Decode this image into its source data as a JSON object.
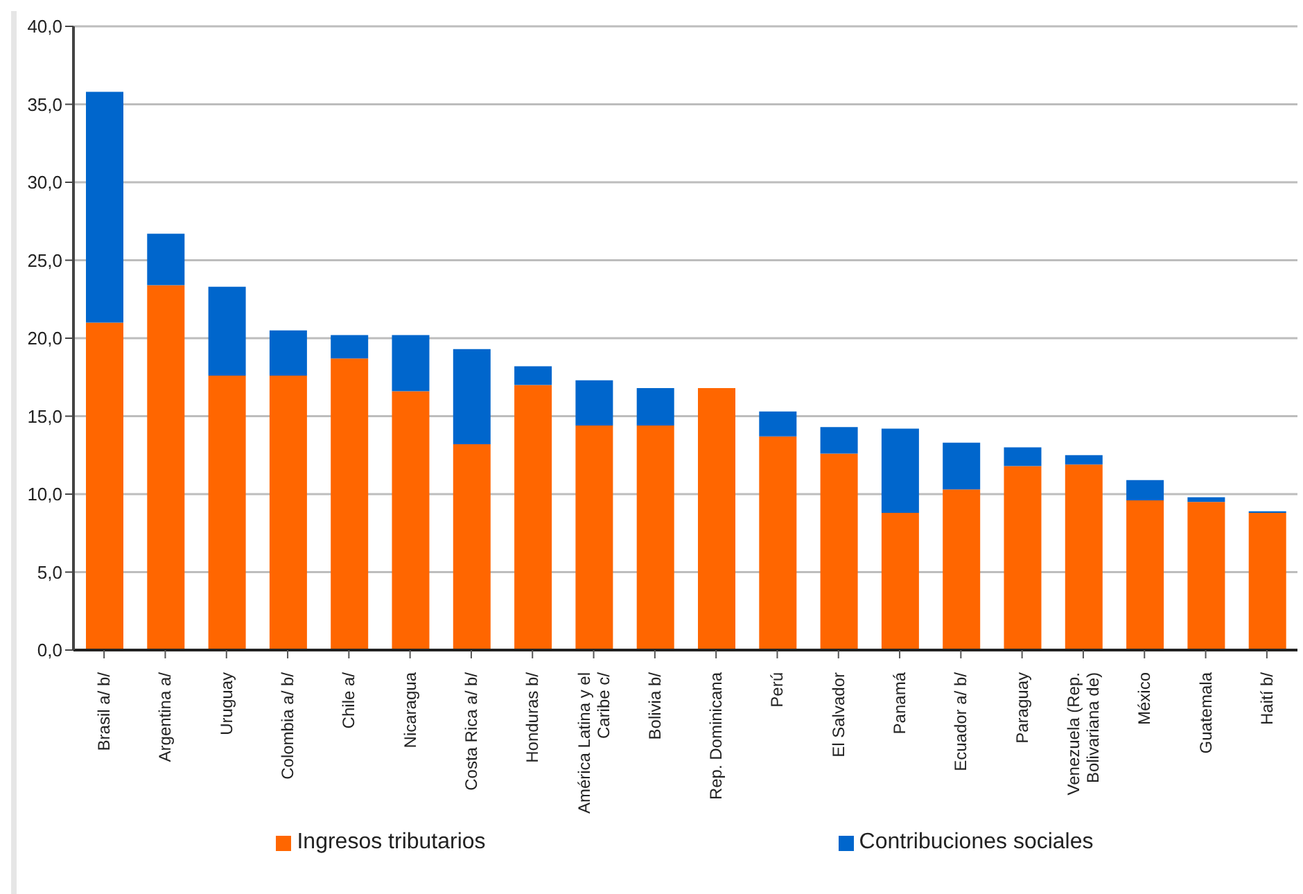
{
  "chart_data": {
    "type": "bar",
    "stacked": true,
    "categories": [
      "Brasil a/ b/",
      "Argentina a/",
      "Uruguay",
      "Colombia a/ b/",
      "Chile a/",
      "Nicaragua",
      "Costa Rica a/ b/",
      "Honduras b/",
      "América Latina y el Caribe c/",
      "Bolivia b/",
      "Rep. Dominicana",
      "Perú",
      "El Salvador",
      "Panamá",
      "Ecuador a/ b/",
      "Paraguay",
      "Venezuela (Rep. Bolivariana de)",
      "México",
      "Guatemala",
      "Haití b/"
    ],
    "series": [
      {
        "name": "Ingresos tributarios",
        "color": "#ff6600",
        "values": [
          21.0,
          23.4,
          17.6,
          17.6,
          18.7,
          16.6,
          13.2,
          17.0,
          14.4,
          14.4,
          16.8,
          13.7,
          12.6,
          8.8,
          10.3,
          11.8,
          11.9,
          9.6,
          9.5,
          8.8
        ]
      },
      {
        "name": "Contribuciones sociales",
        "color": "#0066cc",
        "values": [
          14.8,
          3.3,
          5.7,
          2.9,
          1.5,
          3.6,
          6.1,
          1.2,
          2.9,
          2.4,
          0,
          1.6,
          1.7,
          5.4,
          3.0,
          1.2,
          0.6,
          1.3,
          0.3,
          0.1
        ]
      }
    ],
    "ylim": [
      0,
      40
    ],
    "yticks": [
      {
        "value": 0,
        "label": "0,0"
      },
      {
        "value": 5,
        "label": "5,0"
      },
      {
        "value": 10,
        "label": "10,0"
      },
      {
        "value": 15,
        "label": "15,0"
      },
      {
        "value": 20,
        "label": "20,0"
      },
      {
        "value": 25,
        "label": "25,0"
      },
      {
        "value": 30,
        "label": "30,0"
      },
      {
        "value": 35,
        "label": "35,0"
      },
      {
        "value": 40,
        "label": "40,0"
      }
    ],
    "grid": "y",
    "legend": "bottom"
  }
}
